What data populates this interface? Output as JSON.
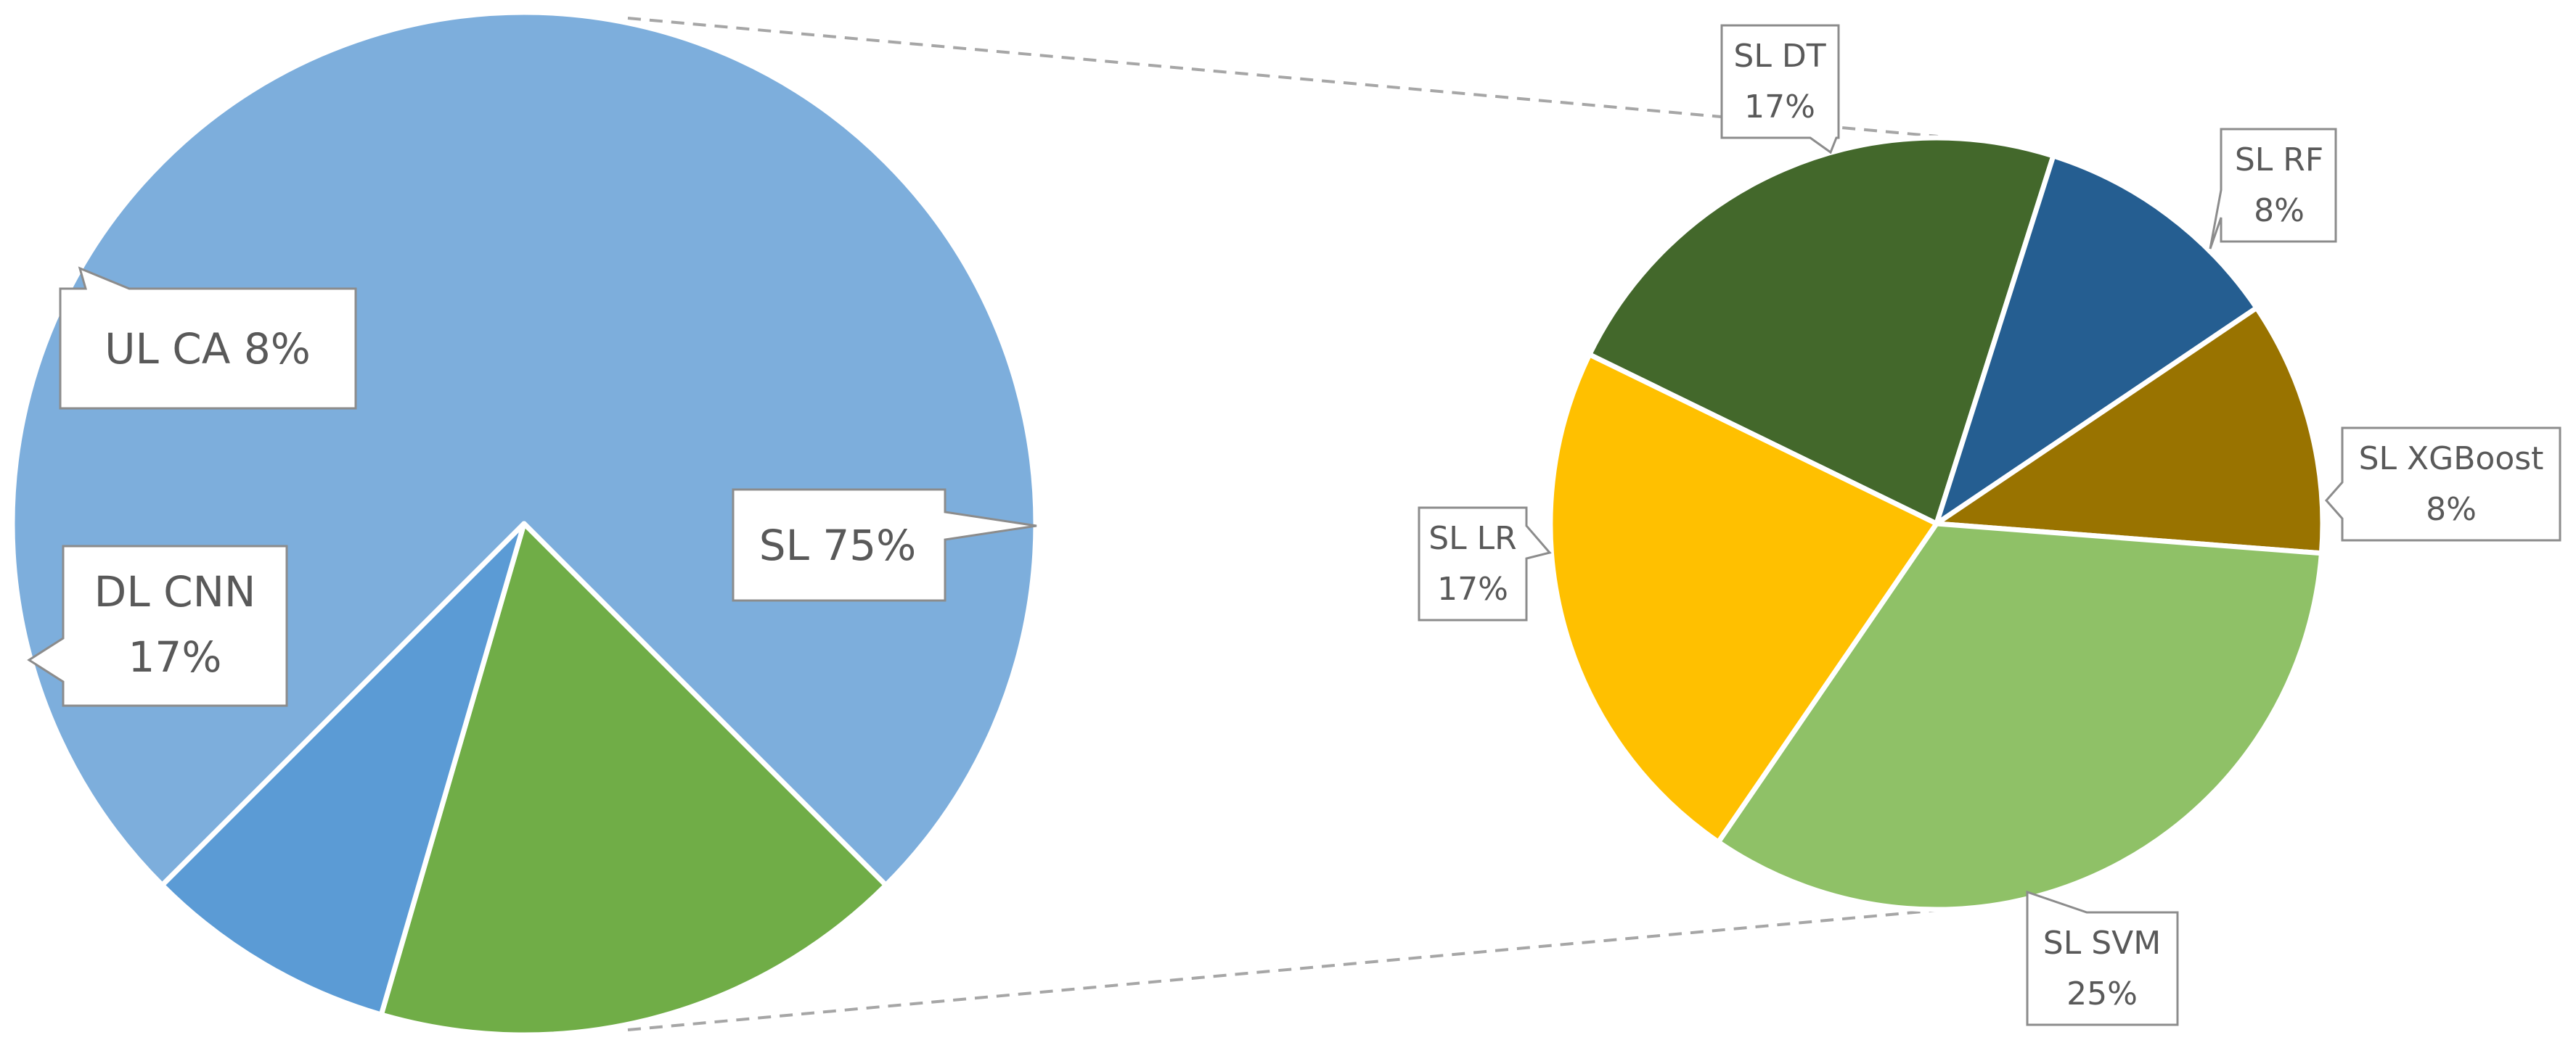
{
  "chart_data": [
    {
      "type": "pie",
      "slices": [
        {
          "category": "SL",
          "value": 75,
          "label_text": "SL 75%",
          "color": "#7DAEDC"
        },
        {
          "category": "DL CNN",
          "value": 17,
          "label_line1": "DL CNN",
          "label_line2": "17%",
          "color": "#70AD47"
        },
        {
          "category": "UL CA",
          "value": 8,
          "label_text": "UL CA 8%",
          "color": "#5B9BD5"
        }
      ]
    },
    {
      "type": "pie",
      "slices": [
        {
          "category": "SL DT",
          "value": 17,
          "label_line1": "SL DT",
          "label_line2": "17%",
          "color": "#43682B"
        },
        {
          "category": "SL RF",
          "value": 8,
          "label_line1": "SL RF",
          "label_line2": "8%",
          "color": "#255E91"
        },
        {
          "category": "SL XGBoost",
          "value": 8,
          "label_line1": "SL XGBoost",
          "label_line2": "8%",
          "color": "#997300"
        },
        {
          "category": "SL SVM",
          "value": 25,
          "label_line1": "SL SVM",
          "label_line2": "25%",
          "color": "#8FC167"
        },
        {
          "category": "SL LR",
          "value": 17,
          "label_line1": "SL LR",
          "label_line2": "17%",
          "color": "#FFC000"
        }
      ]
    }
  ]
}
